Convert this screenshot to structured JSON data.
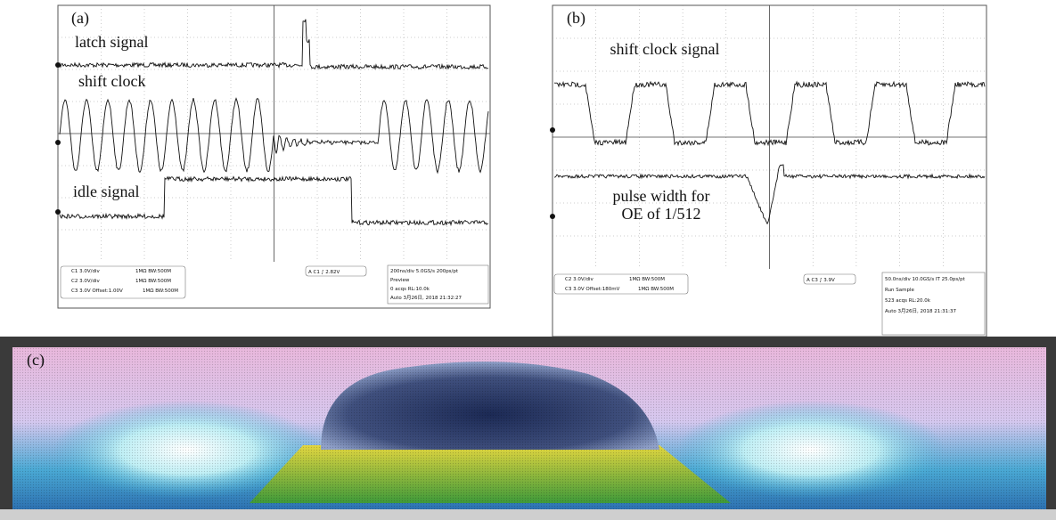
{
  "panel_a": {
    "label": "(a)",
    "annotations": [
      "latch signal",
      "shift clock",
      "idle signal"
    ],
    "channels": [
      "C1 3.0V/div",
      "C2 3.0V/div",
      "C3 3.0V  Offset:1.00V"
    ],
    "channel_settings": [
      "1MΩ BW:500M",
      "1MΩ BW:500M",
      "1MΩ BW:500M"
    ],
    "trigger": "A  C1  ∫ 2.82V",
    "status": [
      "200ns/div  5.0GS/s     200ps/pt",
      "Preview",
      "0 acqs          RL:10.0k",
      "Auto   3月26日, 2018      21:32:27"
    ]
  },
  "panel_b": {
    "label": "(b)",
    "annotations": [
      "shift clock signal",
      "pulse width for",
      "OE of 1/512"
    ],
    "channels": [
      "C2 3.0V/div",
      "C3 3.0V  Offset:180mV"
    ],
    "channel_settings": [
      "1MΩ BW:500M",
      "1MΩ BW:500M"
    ],
    "trigger": "A  C3  ∫ 3.9V",
    "status": [
      "50.0ns/div 10.0GS/s  IT  25.0ps/pt",
      "Run           Sample",
      "523 acqs        RL:20.0k",
      "Auto   3月26日, 2018      21:31:37"
    ]
  },
  "panel_c": {
    "label": "(c)"
  }
}
